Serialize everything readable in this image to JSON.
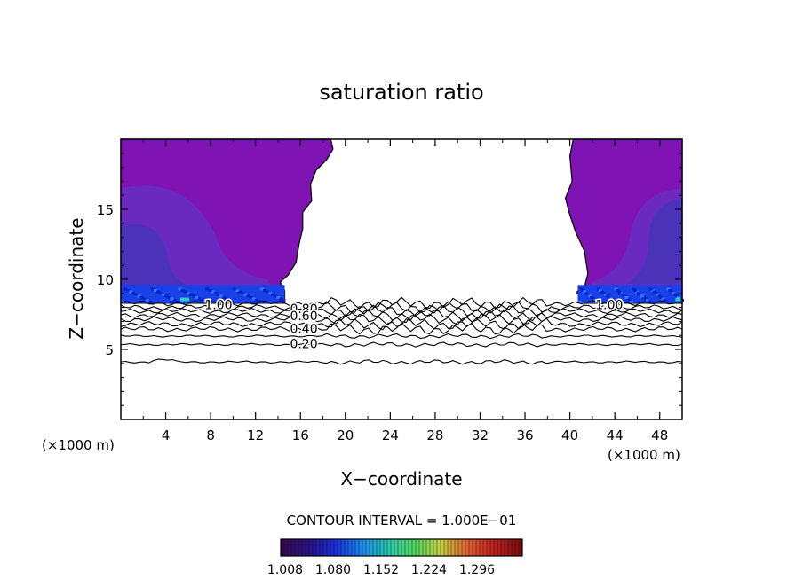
{
  "chart_data": {
    "type": "heatmap",
    "title": "saturation ratio",
    "xlabel": "X−coordinate",
    "ylabel": "Z−coordinate",
    "x_unit_left": "(×1000 m)",
    "x_unit_right": "(×1000 m)",
    "xlim": [
      0,
      50
    ],
    "ylim": [
      0,
      20
    ],
    "x_ticks": [
      4,
      8,
      12,
      16,
      20,
      24,
      28,
      32,
      36,
      40,
      44,
      48
    ],
    "y_ticks": [
      5,
      10,
      15
    ],
    "contour_interval_text": "CONTOUR INTERVAL = 1.000E−01",
    "colorbar_ticks": [
      "1.008",
      "1.080",
      "1.152",
      "1.224",
      "1.296"
    ],
    "colorbar_colors": [
      "#3a0a52",
      "#2a1488",
      "#1830e0",
      "#1a88f0",
      "#2ac8b0",
      "#50d860",
      "#c8d040",
      "#e06030",
      "#c02020",
      "#801010"
    ],
    "fill_colors": {
      "background": "#7f13b3",
      "inner": "#6a2ac0",
      "core": "#4a33b8",
      "band": "#1a40e8",
      "band_light": "#2a80ff"
    },
    "contours": [
      {
        "level": 1.0,
        "label": "1.00",
        "z": 8.3
      },
      {
        "level": 0.9,
        "label": "",
        "z": 8.0
      },
      {
        "level": 0.8,
        "label": "0.80",
        "z": 7.75
      },
      {
        "level": 0.7,
        "label": "",
        "z": 7.45
      },
      {
        "level": 0.6,
        "label": "0.60",
        "z": 7.15
      },
      {
        "level": 0.5,
        "label": "",
        "z": 6.8
      },
      {
        "level": 0.4,
        "label": "0.40",
        "z": 6.45
      },
      {
        "level": 0.3,
        "label": "",
        "z": 5.95
      },
      {
        "level": 0.2,
        "label": "0.20",
        "z": 5.35
      },
      {
        "level": 0.1,
        "label": "",
        "z": 4.1
      }
    ],
    "contour_labels": [
      {
        "text": "1.00",
        "x": 8.7,
        "z": 8.2
      },
      {
        "text": "1.00",
        "x": 43.5,
        "z": 8.2
      },
      {
        "text": "0.80",
        "x": 16.3,
        "z": 7.9
      },
      {
        "text": "0.60",
        "x": 16.3,
        "z": 7.4
      },
      {
        "text": "0.40",
        "x": 16.3,
        "z": 6.5
      },
      {
        "text": "0.20",
        "x": 16.3,
        "z": 5.4
      }
    ],
    "supersaturated_regions": [
      {
        "side": "left",
        "x_range": [
          0,
          18.7
        ],
        "z_range": [
          8.3,
          20
        ]
      },
      {
        "side": "right",
        "x_range": [
          40.3,
          50
        ],
        "z_range": [
          8.3,
          20
        ]
      }
    ]
  }
}
